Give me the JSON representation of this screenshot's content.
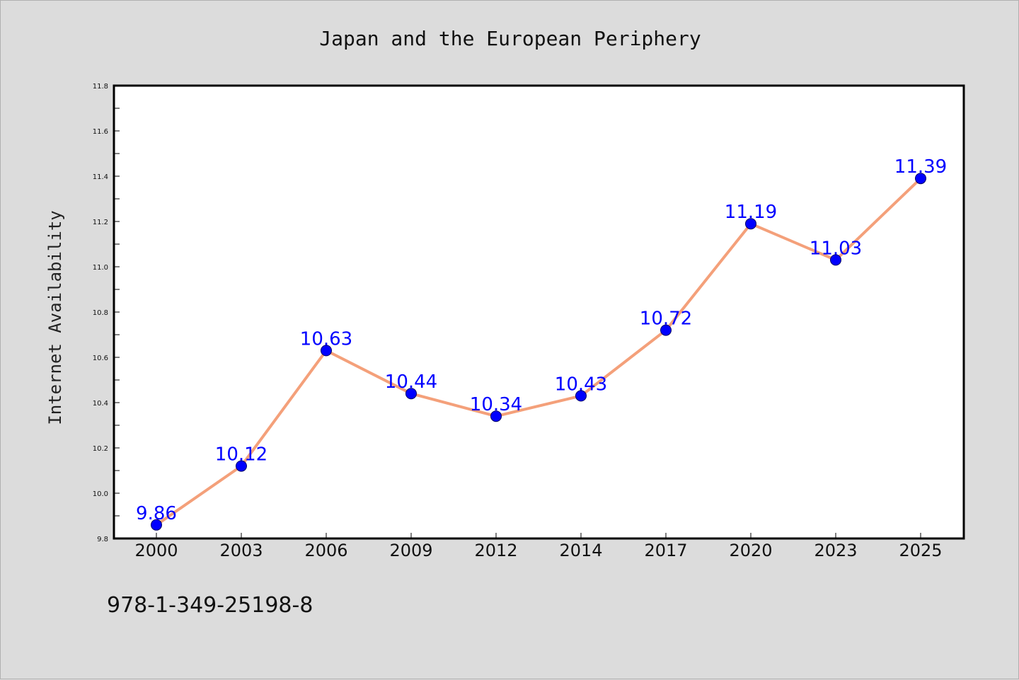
{
  "chart_data": {
    "type": "line",
    "title": "Japan and the European Periphery",
    "xlabel": "",
    "ylabel": "Internet Availability",
    "categories": [
      "2000",
      "2003",
      "2006",
      "2009",
      "2012",
      "2014",
      "2017",
      "2020",
      "2023",
      "2025"
    ],
    "series": [
      {
        "values": [
          9.86,
          10.12,
          10.63,
          10.44,
          10.34,
          10.43,
          10.72,
          11.19,
          11.03,
          11.39
        ],
        "labels": [
          "9.86",
          "10.12",
          "10.63",
          "10.44",
          "10.34",
          "10.43",
          "10.72",
          "11.19",
          "11.03",
          "11.39"
        ]
      }
    ],
    "ylim": [
      9.8,
      11.8
    ],
    "yticks": [
      "9.8",
      "10.0",
      "10.2",
      "10.4",
      "10.6",
      "10.8",
      "11.0",
      "11.2",
      "11.4",
      "11.6",
      "11.8"
    ],
    "grid": false,
    "line_color": "#f4a07a",
    "marker_color": "#0000ff",
    "label_color": "#0000ff",
    "background": "#dcdcdc",
    "plot_background": "#ffffff"
  },
  "footer": {
    "isbn": "978-1-349-25198-8"
  }
}
